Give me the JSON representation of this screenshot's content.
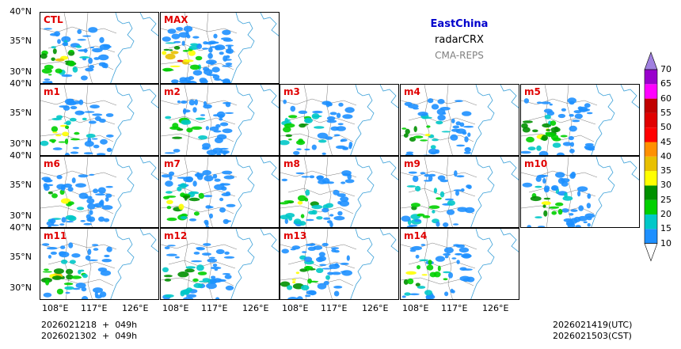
{
  "title": {
    "region": "EastChina",
    "variable": "radarCRX",
    "model": "CMA-REPS",
    "region_color": "#0000cc",
    "model_color": "#808080"
  },
  "footer": {
    "left_line1": "2026021218  +  049h",
    "left_line2": "2026021302  +  049h",
    "right_line1": "2026021419(UTC)",
    "right_line2": "2026021503(CST)"
  },
  "chart_data": {
    "type": "heatmap",
    "description_axes": {
      "y_ticks": [
        "40°N",
        "35°N",
        "30°N"
      ],
      "x_ticks": [
        "108°E",
        "117°E",
        "126°E"
      ],
      "lat_range": [
        28,
        40
      ],
      "lon_range": [
        104,
        130
      ]
    },
    "panels": [
      {
        "name": "CTL",
        "intensity": 0.6
      },
      {
        "name": "MAX",
        "intensity": 1.0
      },
      {
        "name": "m1",
        "intensity": 0.5
      },
      {
        "name": "m2",
        "intensity": 0.45
      },
      {
        "name": "m3",
        "intensity": 0.55
      },
      {
        "name": "m4",
        "intensity": 0.5
      },
      {
        "name": "m5",
        "intensity": 0.6
      },
      {
        "name": "m6",
        "intensity": 0.6
      },
      {
        "name": "m7",
        "intensity": 0.65
      },
      {
        "name": "m8",
        "intensity": 0.5
      },
      {
        "name": "m9",
        "intensity": 0.4
      },
      {
        "name": "m10",
        "intensity": 0.55
      },
      {
        "name": "m11",
        "intensity": 0.5
      },
      {
        "name": "m12",
        "intensity": 0.5
      },
      {
        "name": "m13",
        "intensity": 0.55
      },
      {
        "name": "m14",
        "intensity": 0.5
      }
    ],
    "colorbar": {
      "levels": [
        10,
        15,
        20,
        25,
        30,
        35,
        40,
        45,
        50,
        55,
        60,
        65,
        70
      ],
      "colors": [
        "#1e90ff",
        "#00c8c8",
        "#00d000",
        "#009000",
        "#ffff00",
        "#e8c000",
        "#ff9000",
        "#ff0000",
        "#e00000",
        "#c00000",
        "#ff00ff",
        "#9900cc",
        "#a080e0",
        "#ffffff"
      ],
      "extend": "both"
    }
  }
}
